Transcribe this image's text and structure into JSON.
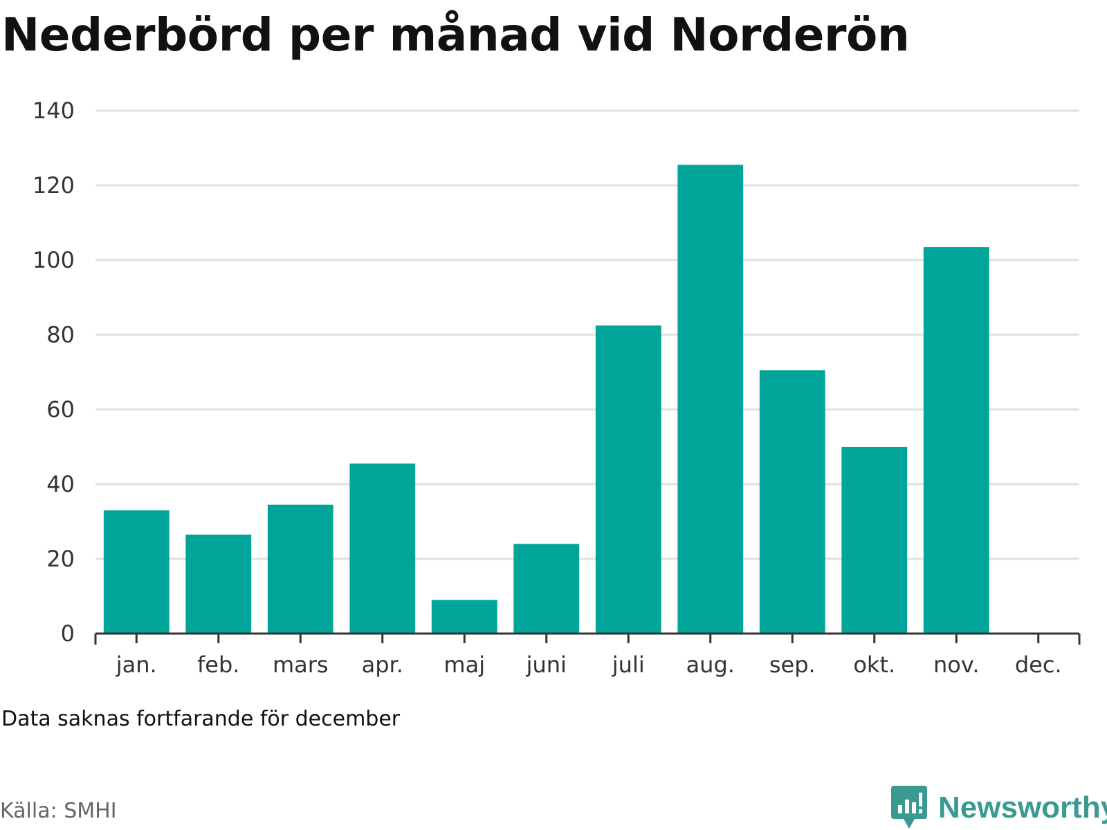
{
  "title": "Nederbörd per månad vid Norderön",
  "note": "Data saknas fortfarande för december",
  "source": "Källa: SMHI",
  "brand": {
    "name": "Newsworthy",
    "icon": "newsworthy-logo-icon",
    "color": "#3a9a92"
  },
  "colors": {
    "bar": "#00a499",
    "grid": "#e0e0e0",
    "axis": "#333333"
  },
  "chart_data": {
    "type": "bar",
    "categories": [
      "jan.",
      "feb.",
      "mars",
      "apr.",
      "maj",
      "juni",
      "juli",
      "aug.",
      "sep.",
      "okt.",
      "nov.",
      "dec."
    ],
    "values": [
      33,
      26.5,
      34.5,
      45.5,
      9,
      24,
      82.5,
      125.5,
      70.5,
      50,
      103.5,
      null
    ],
    "yticks": [
      "0",
      "20",
      "40",
      "60",
      "80",
      "100",
      "120",
      "140"
    ],
    "ylim": [
      0,
      140
    ],
    "grid": true
  }
}
